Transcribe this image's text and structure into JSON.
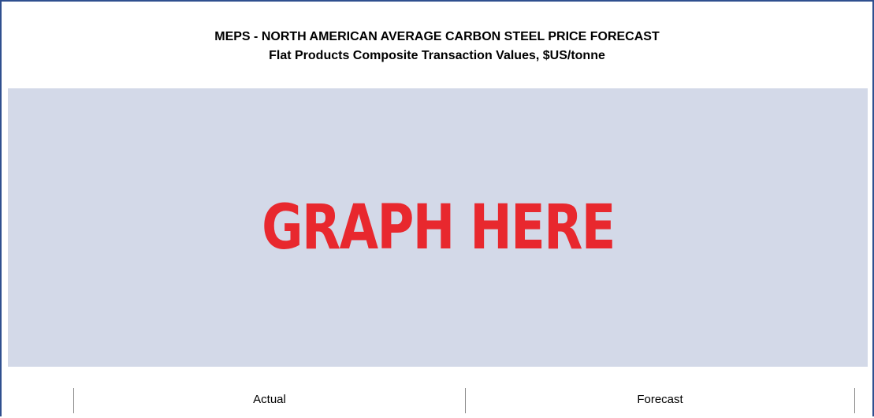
{
  "header": {
    "title": "MEPS - NORTH AMERICAN AVERAGE CARBON STEEL PRICE FORECAST",
    "subtitle": "Flat Products Composite Transaction Values, $US/tonne"
  },
  "placeholder": {
    "label": "GRAPH HERE"
  },
  "footer": {
    "columns": [
      "Actual",
      "Forecast"
    ]
  }
}
